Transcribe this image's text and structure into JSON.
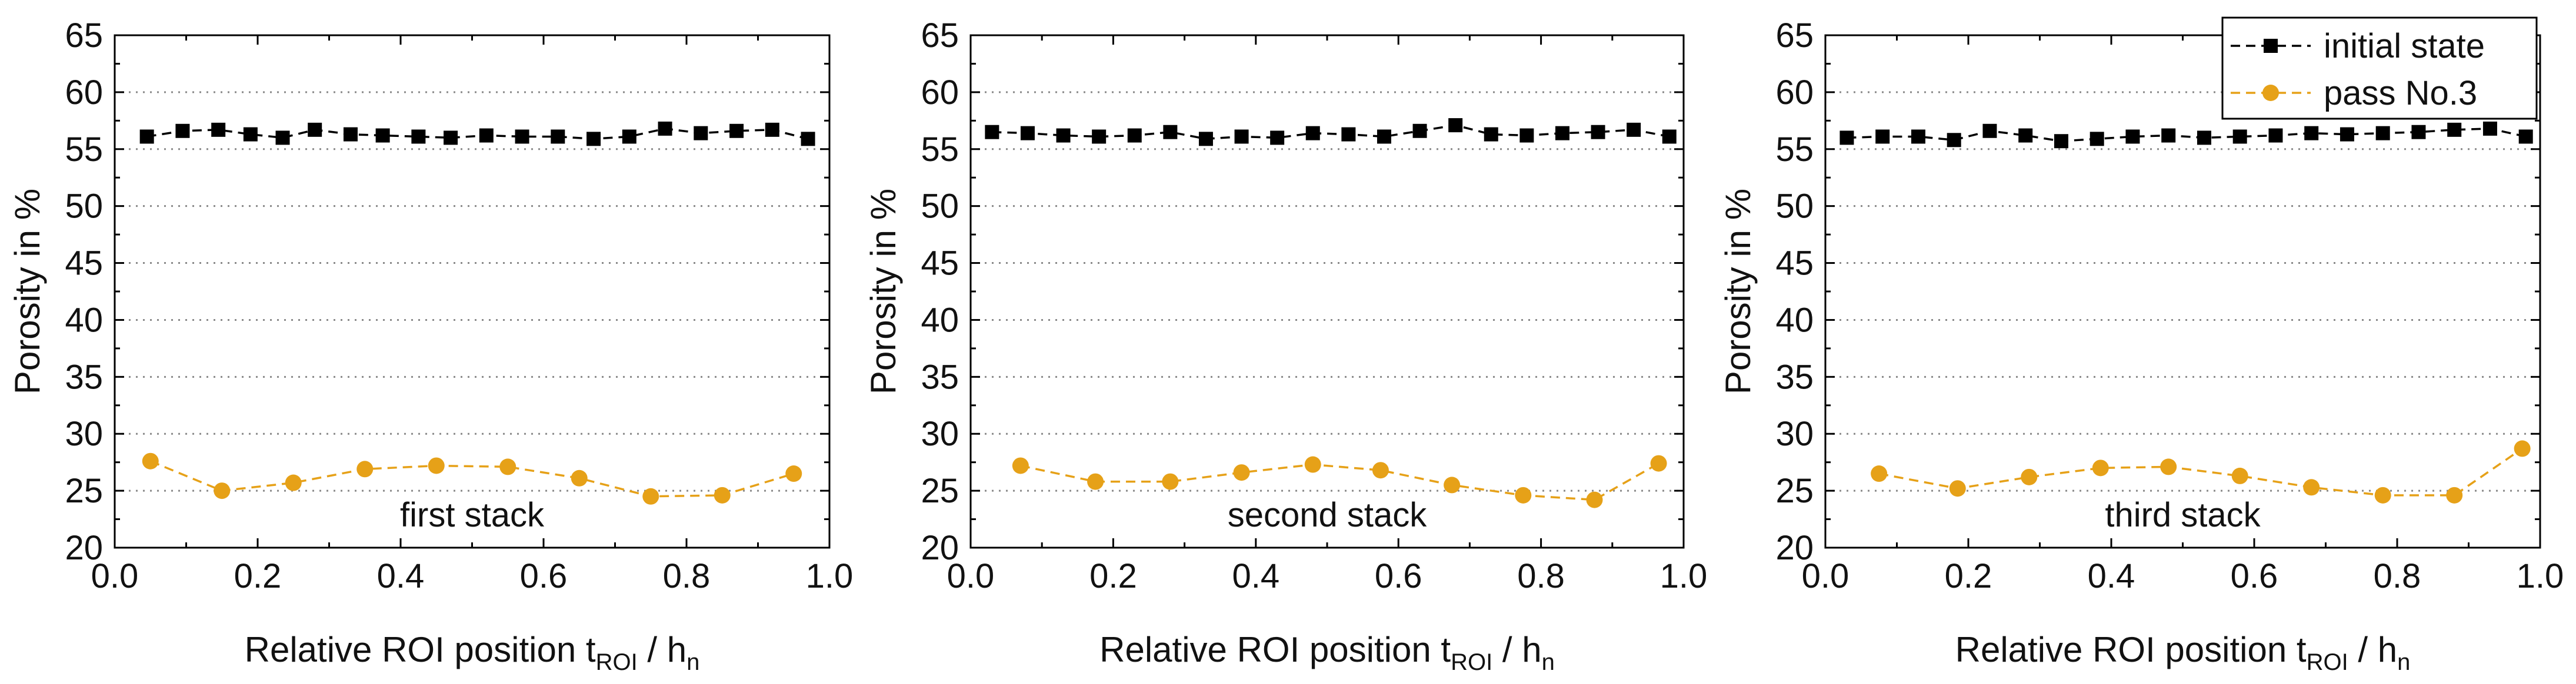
{
  "chart_data": [
    {
      "type": "line",
      "panel_label": "first stack",
      "xlabel_main": "Relative ROI position t",
      "xlabel_sub1": "ROI",
      "xlabel_mid": " / h",
      "xlabel_sub2": "n",
      "ylabel": "Porosity in %",
      "xlim": [
        0.0,
        1.0
      ],
      "ylim": [
        20,
        65
      ],
      "xticks": [
        "0.0",
        "0.2",
        "0.4",
        "0.6",
        "0.8",
        "1.0"
      ],
      "yticks": [
        "20",
        "25",
        "30",
        "35",
        "40",
        "45",
        "50",
        "55",
        "60",
        "65"
      ],
      "grid": "horizontal dotted",
      "series": [
        {
          "name": "initial state",
          "color": "#000000",
          "marker": "square",
          "x": [
            0.045,
            0.095,
            0.145,
            0.19,
            0.235,
            0.28,
            0.33,
            0.375,
            0.425,
            0.47,
            0.52,
            0.57,
            0.62,
            0.67,
            0.72,
            0.77,
            0.82,
            0.87,
            0.92,
            0.97
          ],
          "y": [
            56.1,
            56.6,
            56.7,
            56.3,
            56.0,
            56.7,
            56.3,
            56.2,
            56.1,
            56.0,
            56.2,
            56.1,
            56.1,
            55.9,
            56.1,
            56.8,
            56.4,
            56.6,
            56.7,
            55.9
          ]
        },
        {
          "name": "pass No.3",
          "color": "#e6a118",
          "marker": "circle",
          "x": [
            0.05,
            0.15,
            0.25,
            0.35,
            0.45,
            0.55,
            0.65,
            0.75,
            0.85,
            0.95
          ],
          "y": [
            27.6,
            25.0,
            25.7,
            26.9,
            27.2,
            27.1,
            26.1,
            24.5,
            24.6,
            26.5
          ]
        }
      ]
    },
    {
      "type": "line",
      "panel_label": "second stack",
      "xlabel_main": "Relative ROI position t",
      "xlabel_sub1": "ROI",
      "xlabel_mid": " / h",
      "xlabel_sub2": "n",
      "ylabel": "Porosity in %",
      "xlim": [
        0.0,
        1.0
      ],
      "ylim": [
        20,
        65
      ],
      "xticks": [
        "0.0",
        "0.2",
        "0.4",
        "0.6",
        "0.8",
        "1.0"
      ],
      "yticks": [
        "20",
        "25",
        "30",
        "35",
        "40",
        "45",
        "50",
        "55",
        "60",
        "65"
      ],
      "grid": "horizontal dotted",
      "series": [
        {
          "name": "initial state",
          "color": "#000000",
          "marker": "square",
          "x": [
            0.03,
            0.08,
            0.13,
            0.18,
            0.23,
            0.28,
            0.33,
            0.38,
            0.43,
            0.48,
            0.53,
            0.58,
            0.63,
            0.68,
            0.73,
            0.78,
            0.83,
            0.88,
            0.93,
            0.98
          ],
          "y": [
            56.5,
            56.4,
            56.2,
            56.1,
            56.2,
            56.5,
            55.9,
            56.1,
            56.0,
            56.4,
            56.3,
            56.1,
            56.6,
            57.1,
            56.3,
            56.2,
            56.4,
            56.5,
            56.7,
            56.1
          ]
        },
        {
          "name": "pass No.3",
          "color": "#e6a118",
          "marker": "circle",
          "x": [
            0.07,
            0.175,
            0.28,
            0.38,
            0.48,
            0.575,
            0.675,
            0.775,
            0.875,
            0.965
          ],
          "y": [
            27.2,
            25.8,
            25.8,
            26.6,
            27.3,
            26.8,
            25.5,
            24.6,
            24.2,
            27.4
          ]
        }
      ]
    },
    {
      "type": "line",
      "panel_label": "third stack",
      "xlabel_main": "Relative ROI position t",
      "xlabel_sub1": "ROI",
      "xlabel_mid": " / h",
      "xlabel_sub2": "n",
      "ylabel": "Porosity in %",
      "xlim": [
        0.0,
        1.0
      ],
      "ylim": [
        20,
        65
      ],
      "xticks": [
        "0.0",
        "0.2",
        "0.4",
        "0.6",
        "0.8",
        "1.0"
      ],
      "yticks": [
        "20",
        "25",
        "30",
        "35",
        "40",
        "45",
        "50",
        "55",
        "60",
        "65"
      ],
      "grid": "horizontal dotted",
      "legend": "top-right",
      "series": [
        {
          "name": "initial state",
          "color": "#000000",
          "marker": "square",
          "x": [
            0.03,
            0.08,
            0.13,
            0.18,
            0.23,
            0.28,
            0.33,
            0.38,
            0.43,
            0.48,
            0.53,
            0.58,
            0.63,
            0.68,
            0.73,
            0.78,
            0.83,
            0.88,
            0.93,
            0.98
          ],
          "y": [
            56.0,
            56.1,
            56.1,
            55.8,
            56.6,
            56.2,
            55.7,
            55.9,
            56.1,
            56.2,
            56.0,
            56.1,
            56.2,
            56.4,
            56.3,
            56.4,
            56.5,
            56.7,
            56.8,
            56.1
          ]
        },
        {
          "name": "pass No.3",
          "color": "#e6a118",
          "marker": "circle",
          "x": [
            0.075,
            0.185,
            0.285,
            0.385,
            0.48,
            0.58,
            0.68,
            0.78,
            0.88,
            0.975
          ],
          "y": [
            26.5,
            25.2,
            26.2,
            27.0,
            27.1,
            26.3,
            25.3,
            24.6,
            24.6,
            28.7
          ]
        }
      ]
    }
  ]
}
